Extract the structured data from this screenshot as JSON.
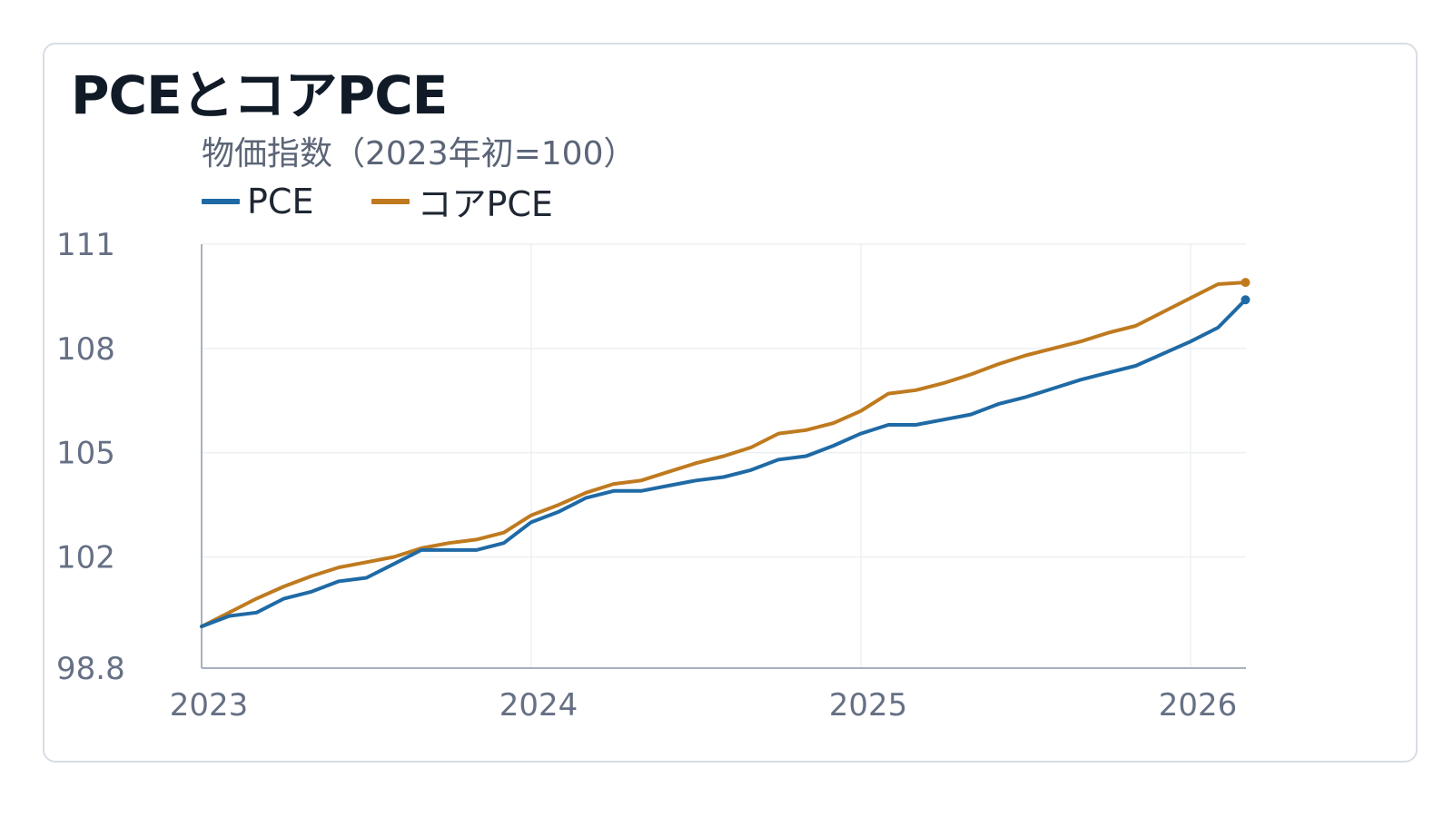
{
  "chart_data": {
    "type": "line",
    "title": "PCEとコアPCE",
    "subtitle": "物価指数（2023年初=100）",
    "xlabel": "",
    "ylabel": "",
    "ylim": [
      98.8,
      111
    ],
    "yticks": [
      "111",
      "108",
      "105",
      "102",
      "98.8"
    ],
    "ytick_values": [
      111,
      108,
      105,
      102,
      98.8
    ],
    "xticks": [
      "2023",
      "2024",
      "2025",
      "2026"
    ],
    "xtick_values": [
      "2023-01",
      "2024-01",
      "2025-01",
      "2026-01"
    ],
    "x": [
      "2023-01",
      "2023-02",
      "2023-03",
      "2023-04",
      "2023-05",
      "2023-06",
      "2023-07",
      "2023-08",
      "2023-09",
      "2023-10",
      "2023-11",
      "2023-12",
      "2024-01",
      "2024-02",
      "2024-03",
      "2024-04",
      "2024-05",
      "2024-06",
      "2024-07",
      "2024-08",
      "2024-09",
      "2024-10",
      "2024-11",
      "2024-12",
      "2025-01",
      "2025-02",
      "2025-03",
      "2025-04",
      "2025-05",
      "2025-06",
      "2025-07",
      "2025-08",
      "2025-09",
      "2025-10",
      "2025-11",
      "2025-12",
      "2026-01",
      "2026-02",
      "2026-03"
    ],
    "series": [
      {
        "name": "PCE",
        "color": "#1f6aa5",
        "values": [
          100.0,
          100.3,
          100.4,
          100.8,
          101.0,
          101.3,
          101.4,
          101.8,
          102.2,
          102.2,
          102.2,
          102.4,
          103.0,
          103.3,
          103.7,
          103.9,
          103.9,
          104.05,
          104.2,
          104.3,
          104.5,
          104.8,
          104.9,
          105.2,
          105.55,
          105.8,
          105.8,
          105.95,
          106.1,
          106.4,
          106.6,
          106.85,
          107.1,
          107.3,
          107.5,
          107.85,
          108.2,
          108.6,
          109.4
        ]
      },
      {
        "name": "コアPCE",
        "color": "#bf7a1f",
        "values": [
          100.0,
          100.4,
          100.8,
          101.15,
          101.45,
          101.7,
          101.85,
          102.0,
          102.25,
          102.4,
          102.5,
          102.7,
          103.2,
          103.5,
          103.85,
          104.1,
          104.2,
          104.45,
          104.7,
          104.9,
          105.15,
          105.55,
          105.65,
          105.85,
          106.2,
          106.7,
          106.8,
          107.0,
          107.25,
          107.55,
          107.8,
          108.0,
          108.2,
          108.45,
          108.65,
          109.05,
          109.45,
          109.85,
          109.9
        ]
      }
    ],
    "grid": true,
    "legend": "top-left"
  }
}
